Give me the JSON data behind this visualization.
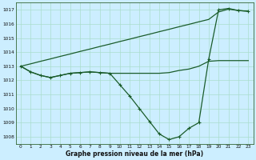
{
  "title": "Graphe pression niveau de la mer (hPa)",
  "bg_color": "#cceeff",
  "grid_color": "#aaddcc",
  "line_color": "#1a5c2a",
  "x_ticks": [
    0,
    1,
    2,
    3,
    4,
    5,
    6,
    7,
    8,
    9,
    10,
    11,
    12,
    13,
    14,
    15,
    16,
    17,
    18,
    19,
    20,
    21,
    22,
    23
  ],
  "ylim": [
    1007.5,
    1017.5
  ],
  "yticks": [
    1008,
    1009,
    1010,
    1011,
    1012,
    1013,
    1014,
    1015,
    1016,
    1017
  ],
  "series_diag": [
    1013.0,
    1013.17,
    1013.35,
    1013.52,
    1013.7,
    1013.87,
    1014.05,
    1014.22,
    1014.4,
    1014.57,
    1014.75,
    1014.92,
    1015.1,
    1015.27,
    1015.45,
    1015.62,
    1015.8,
    1015.97,
    1016.15,
    1016.32,
    1016.85,
    1017.05,
    1016.95,
    1016.9
  ],
  "series_flat": [
    1013.0,
    1012.6,
    1012.35,
    1012.2,
    1012.35,
    1012.5,
    1012.55,
    1012.6,
    1012.55,
    1012.5,
    1012.5,
    1012.5,
    1012.5,
    1012.5,
    1012.5,
    1012.55,
    1012.7,
    1012.8,
    1013.0,
    1013.35,
    1013.4,
    1013.4,
    1013.4,
    1013.4
  ],
  "series_main": [
    1013.0,
    1012.6,
    1012.35,
    1012.2,
    1012.35,
    1012.5,
    1012.55,
    1012.6,
    1012.55,
    1012.5,
    1011.7,
    1010.9,
    1010.0,
    1009.1,
    1008.2,
    1007.8,
    1008.0,
    1008.6,
    1009.0,
    1013.5,
    1017.0,
    1017.1,
    1016.95,
    1016.9
  ]
}
